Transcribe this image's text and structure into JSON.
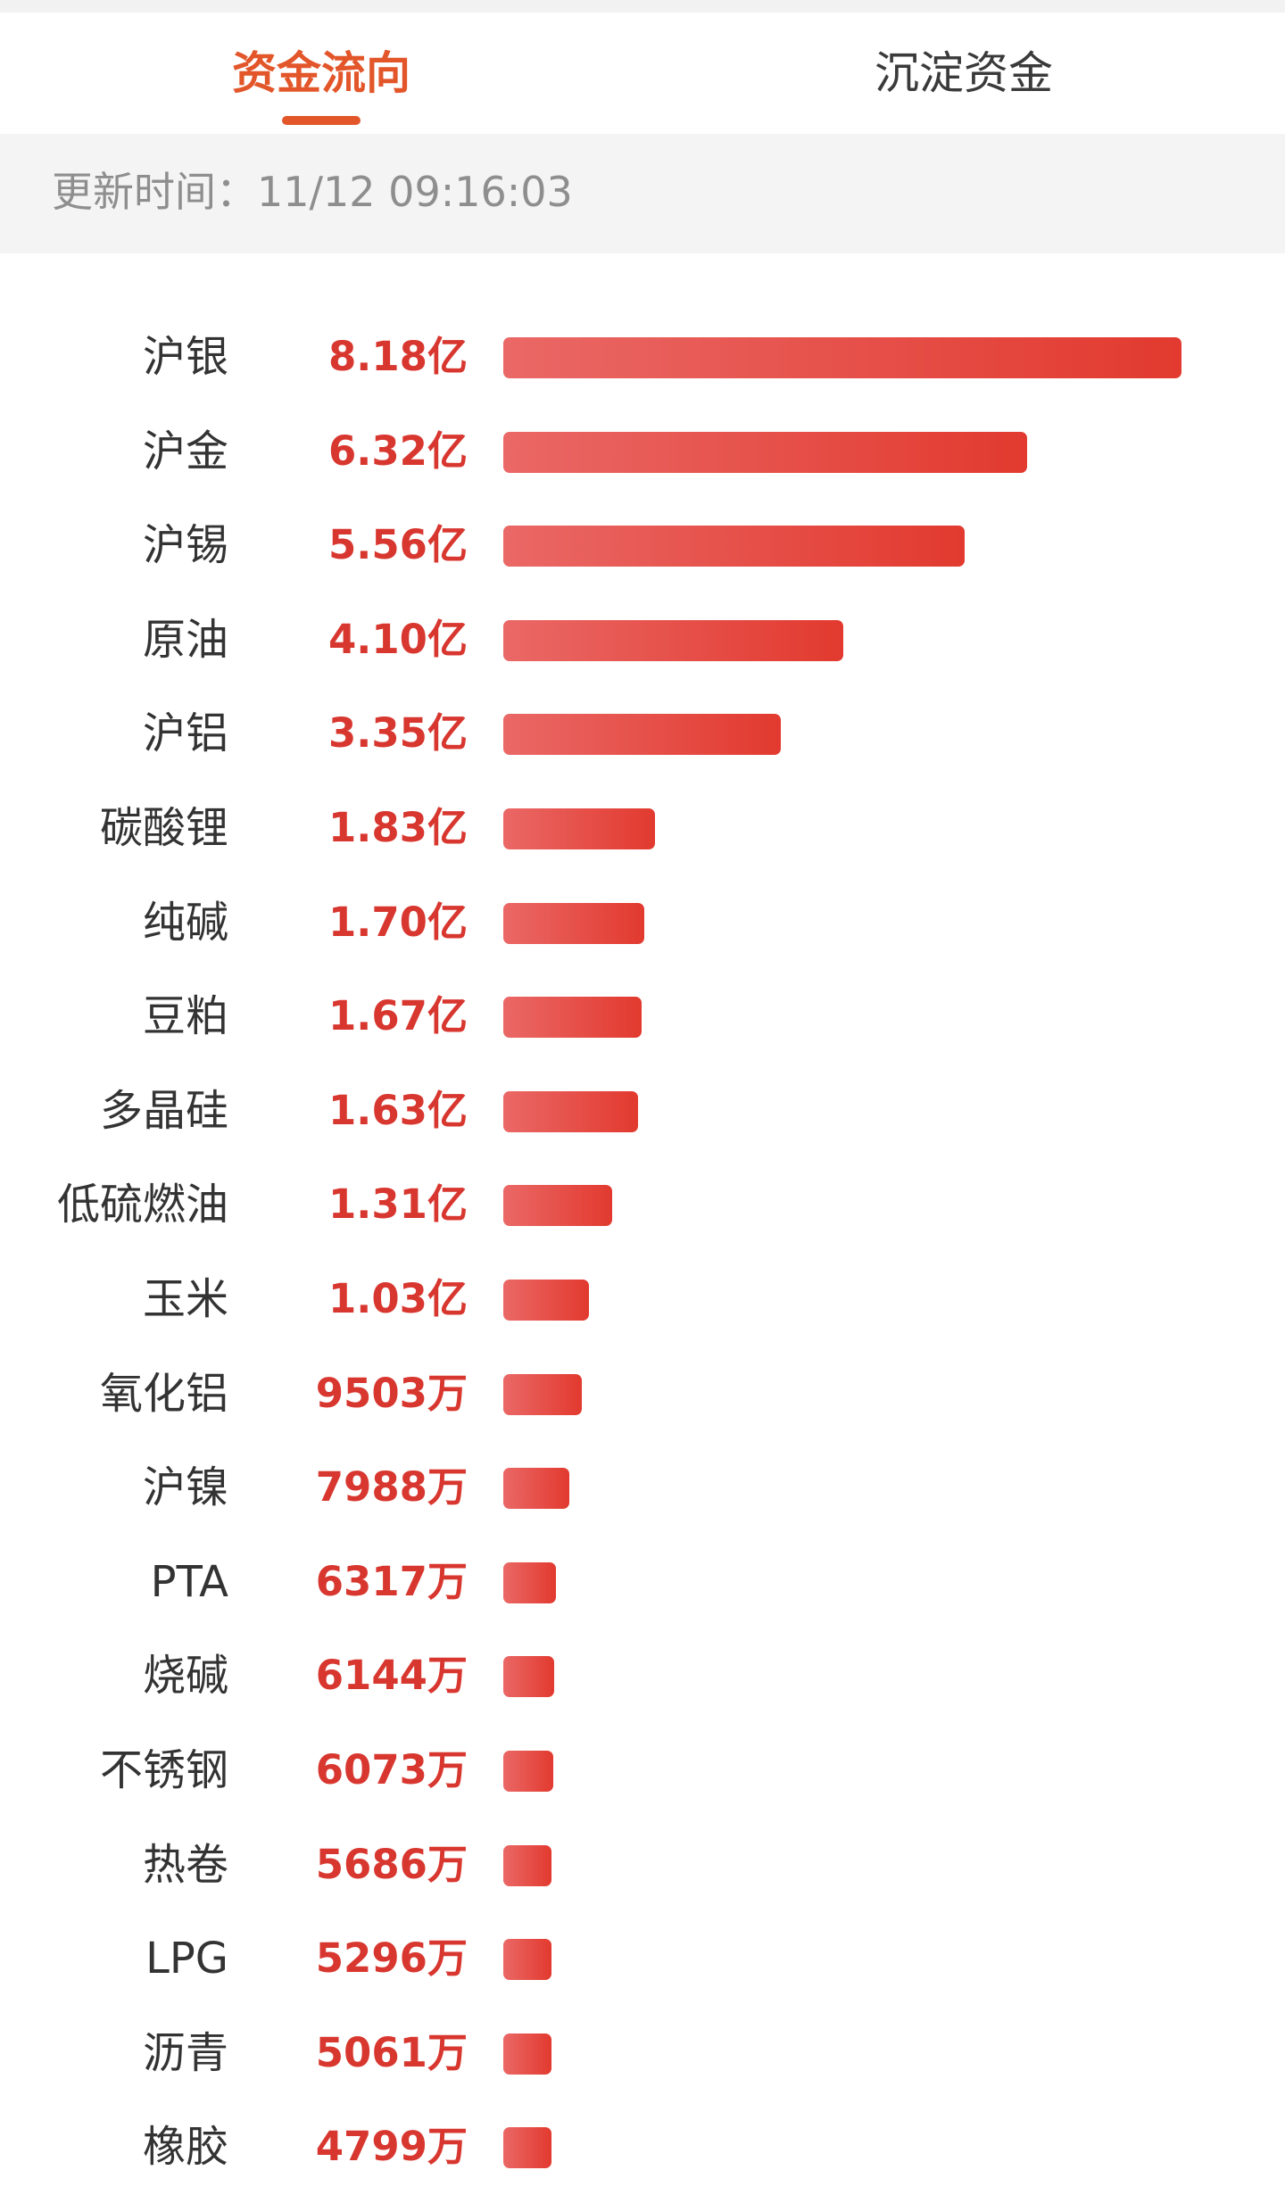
{
  "tabs": {
    "fund_flow": "资金流向",
    "settled_funds": "沉淀资金"
  },
  "update": {
    "text": "更新时间：11/12 09:16:03"
  },
  "colors": {
    "accent": "#e2562a",
    "value_text": "#d8372f",
    "bar_start": "#ea6866",
    "bar_end": "#e23a2f"
  },
  "chart_data": {
    "type": "bar",
    "orientation": "horizontal",
    "unit": "元",
    "categories": [
      "沪银",
      "沪金",
      "沪锡",
      "原油",
      "沪铝",
      "碳酸锂",
      "纯碱",
      "豆粕",
      "多晶硅",
      "低硫燃油",
      "玉米",
      "氧化铝",
      "沪镍",
      "PTA",
      "烧碱",
      "不锈钢",
      "热卷",
      "LPG",
      "沥青",
      "橡胶"
    ],
    "value_labels": [
      "8.18亿",
      "6.32亿",
      "5.56亿",
      "4.10亿",
      "3.35亿",
      "1.83亿",
      "1.70亿",
      "1.67亿",
      "1.63亿",
      "1.31亿",
      "1.03亿",
      "9503万",
      "7988万",
      "6317万",
      "6144万",
      "6073万",
      "5686万",
      "5296万",
      "5061万",
      "4799万"
    ],
    "values": [
      818000000,
      632000000,
      556000000,
      410000000,
      335000000,
      183000000,
      170000000,
      167000000,
      163000000,
      131000000,
      103000000,
      95030000,
      79880000,
      63170000,
      61440000,
      60730000,
      56860000,
      52960000,
      50610000,
      47990000
    ]
  }
}
